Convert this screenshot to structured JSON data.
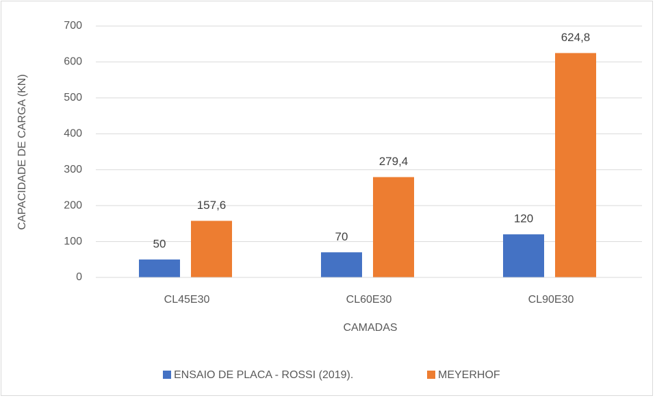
{
  "chart_data": {
    "type": "bar",
    "categories": [
      "CL45E30",
      "CL60E30",
      "CL90E30"
    ],
    "series": [
      {
        "name": "ENSAIO DE PLACA - ROSSI (2019).",
        "color": "#4472c4",
        "values": [
          50,
          70,
          120
        ]
      },
      {
        "name": "MEYERHOF",
        "color": "#ed7d31",
        "values": [
          157.6,
          279.4,
          624.8
        ],
        "value_labels": [
          "157,6",
          "279,4",
          "624,8"
        ]
      }
    ],
    "ylim": [
      0,
      700
    ],
    "yticks": [
      0,
      100,
      200,
      300,
      400,
      500,
      600,
      700
    ],
    "x_label": "CAMADAS",
    "y_label": "CAPACIDADE DE CARGA (KN)",
    "grid": true,
    "legend": "bottom"
  }
}
